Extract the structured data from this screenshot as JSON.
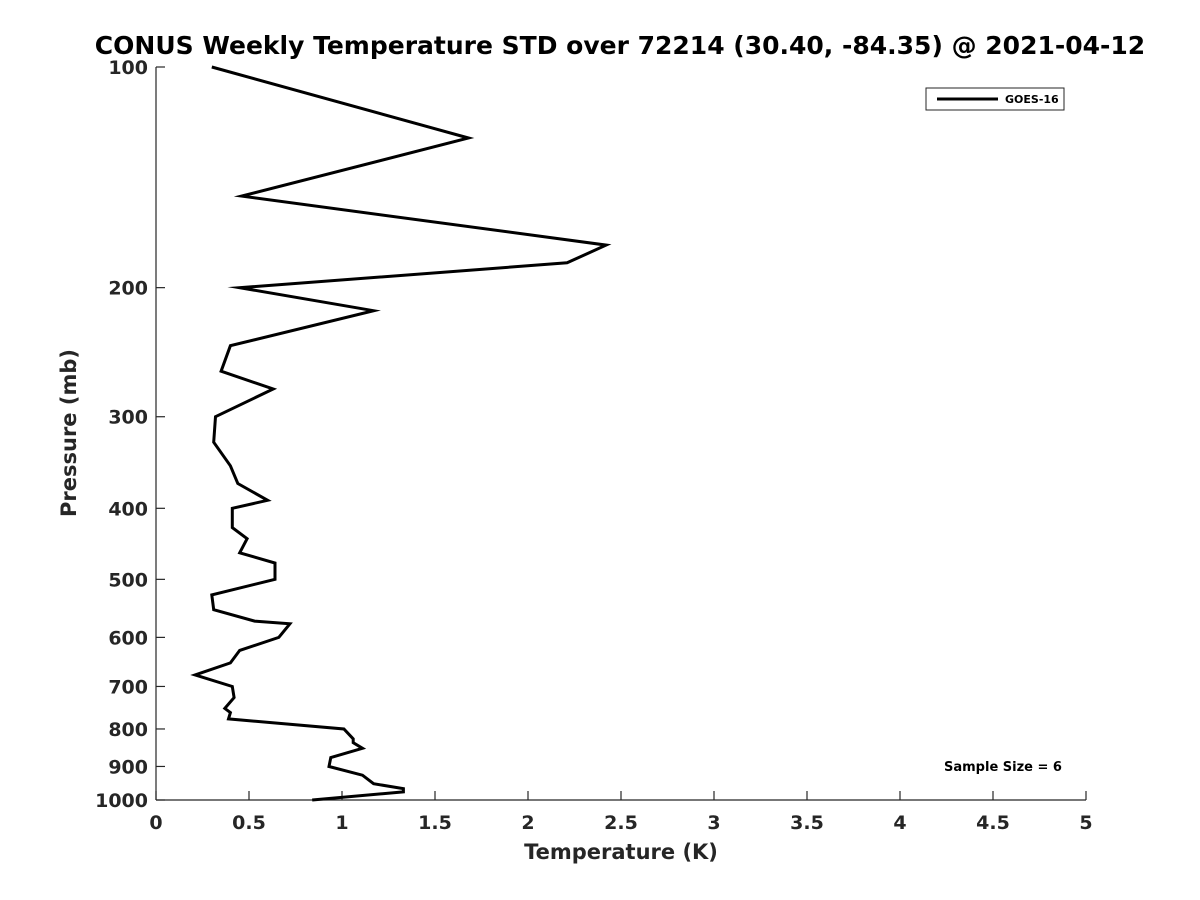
{
  "chart_data": {
    "type": "line",
    "title": "CONUS Weekly Temperature STD over 72214 (30.40, -84.35) @ 2021-04-12",
    "xlabel": "Temperature (K)",
    "ylabel": "Pressure (mb)",
    "xlim": [
      0,
      5
    ],
    "ylim": [
      100,
      1000
    ],
    "y_scale": "log",
    "y_reversed": true,
    "x_ticks": [
      0,
      0.5,
      1,
      1.5,
      2,
      2.5,
      3,
      3.5,
      4,
      4.5,
      5
    ],
    "x_tick_labels": [
      "0",
      "0.5",
      "1",
      "1.5",
      "2",
      "2.5",
      "3",
      "3.5",
      "4",
      "4.5",
      "5"
    ],
    "y_ticks": [
      100,
      200,
      300,
      400,
      500,
      600,
      700,
      800,
      900,
      1000
    ],
    "y_tick_labels": [
      "100",
      "200",
      "300",
      "400",
      "500",
      "600",
      "700",
      "800",
      "900",
      "1000"
    ],
    "grid": false,
    "legend_position": "top-right",
    "annotation": "Sample Size = 6",
    "series": [
      {
        "name": "GOES-16",
        "color": "#000000",
        "points": [
          [
            0.3,
            100
          ],
          [
            1.68,
            125
          ],
          [
            0.46,
            150
          ],
          [
            2.42,
            175
          ],
          [
            2.21,
            185
          ],
          [
            0.45,
            200
          ],
          [
            1.17,
            215
          ],
          [
            0.4,
            240
          ],
          [
            0.35,
            260
          ],
          [
            0.63,
            275
          ],
          [
            0.32,
            300
          ],
          [
            0.31,
            325
          ],
          [
            0.4,
            350
          ],
          [
            0.44,
            370
          ],
          [
            0.6,
            390
          ],
          [
            0.41,
            400
          ],
          [
            0.41,
            425
          ],
          [
            0.49,
            440
          ],
          [
            0.45,
            460
          ],
          [
            0.64,
            475
          ],
          [
            0.64,
            500
          ],
          [
            0.3,
            525
          ],
          [
            0.31,
            550
          ],
          [
            0.53,
            570
          ],
          [
            0.72,
            575
          ],
          [
            0.66,
            600
          ],
          [
            0.45,
            625
          ],
          [
            0.4,
            650
          ],
          [
            0.21,
            675
          ],
          [
            0.41,
            700
          ],
          [
            0.42,
            725
          ],
          [
            0.37,
            750
          ],
          [
            0.4,
            760
          ],
          [
            0.39,
            775
          ],
          [
            1.01,
            800
          ],
          [
            1.06,
            825
          ],
          [
            1.06,
            835
          ],
          [
            1.11,
            850
          ],
          [
            0.94,
            875
          ],
          [
            0.93,
            900
          ],
          [
            1.11,
            925
          ],
          [
            1.17,
            950
          ],
          [
            1.33,
            965
          ],
          [
            1.33,
            975
          ],
          [
            0.84,
            1000
          ]
        ]
      }
    ]
  }
}
